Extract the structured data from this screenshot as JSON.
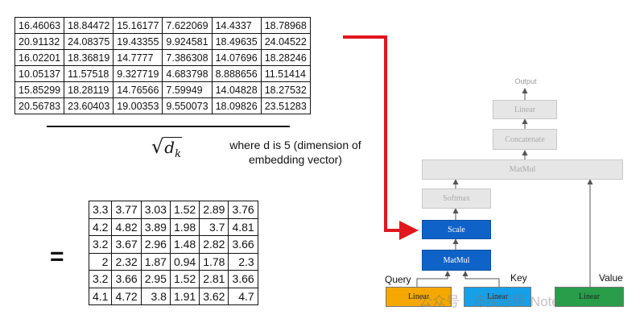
{
  "matrix_top": [
    [
      "16.46063",
      "18.84472",
      "15.16177",
      "7.622069",
      "14.4337",
      "18.78968"
    ],
    [
      "20.91132",
      "24.08375",
      "19.43355",
      "9.924581",
      "18.49635",
      "24.04522"
    ],
    [
      "16.02201",
      "18.36819",
      "14.7777",
      "7.386308",
      "14.07696",
      "18.28246"
    ],
    [
      "10.05137",
      "11.57518",
      "9.327719",
      "4.683798",
      "8.888656",
      "11.51414"
    ],
    [
      "15.85299",
      "18.28119",
      "14.76566",
      "7.59949",
      "14.04828",
      "18.27532"
    ],
    [
      "20.56783",
      "23.60403",
      "19.00353",
      "9.550073",
      "18.09826",
      "23.51283"
    ]
  ],
  "matrix_bottom": [
    [
      "3.3",
      "3.77",
      "3.03",
      "1.52",
      "2.89",
      "3.76"
    ],
    [
      "4.2",
      "4.82",
      "3.89",
      "1.98",
      "3.7",
      "4.81"
    ],
    [
      "3.2",
      "3.67",
      "2.96",
      "1.48",
      "2.82",
      "3.66"
    ],
    [
      "2",
      "2.32",
      "1.87",
      "0.94",
      "1.78",
      "2.3"
    ],
    [
      "3.2",
      "3.66",
      "2.95",
      "1.52",
      "2.81",
      "3.66"
    ],
    [
      "4.1",
      "4.72",
      "3.8",
      "1.91",
      "3.62",
      "4.7"
    ]
  ],
  "formula": {
    "sqrt_symbol": "√",
    "sqrt_var": "d",
    "sqrt_sub": "k",
    "equals": "=",
    "note": "where d is 5 (dimension of embedding vector)"
  },
  "diagram": {
    "output_label": "Output",
    "linear_out": "Linear",
    "concatenate": "Concatenate",
    "matmul_top": "MatMul",
    "softmax": "Softmax",
    "scale": "Scale",
    "matmul_bottom": "MatMul",
    "query_label": "Query",
    "key_label": "Key",
    "value_label": "Value",
    "query_linear": "Linear",
    "key_linear": "Linear",
    "value_linear": "Linear",
    "colors": {
      "active": "#0f63c8",
      "faded": "#e6e6e6",
      "query": "#f5a800",
      "key": "#16a0e8",
      "value": "#2a9d4a",
      "highlight_arrow": "#e0171d"
    }
  },
  "watermark": "公众号 · 沛疾忌医 Note"
}
